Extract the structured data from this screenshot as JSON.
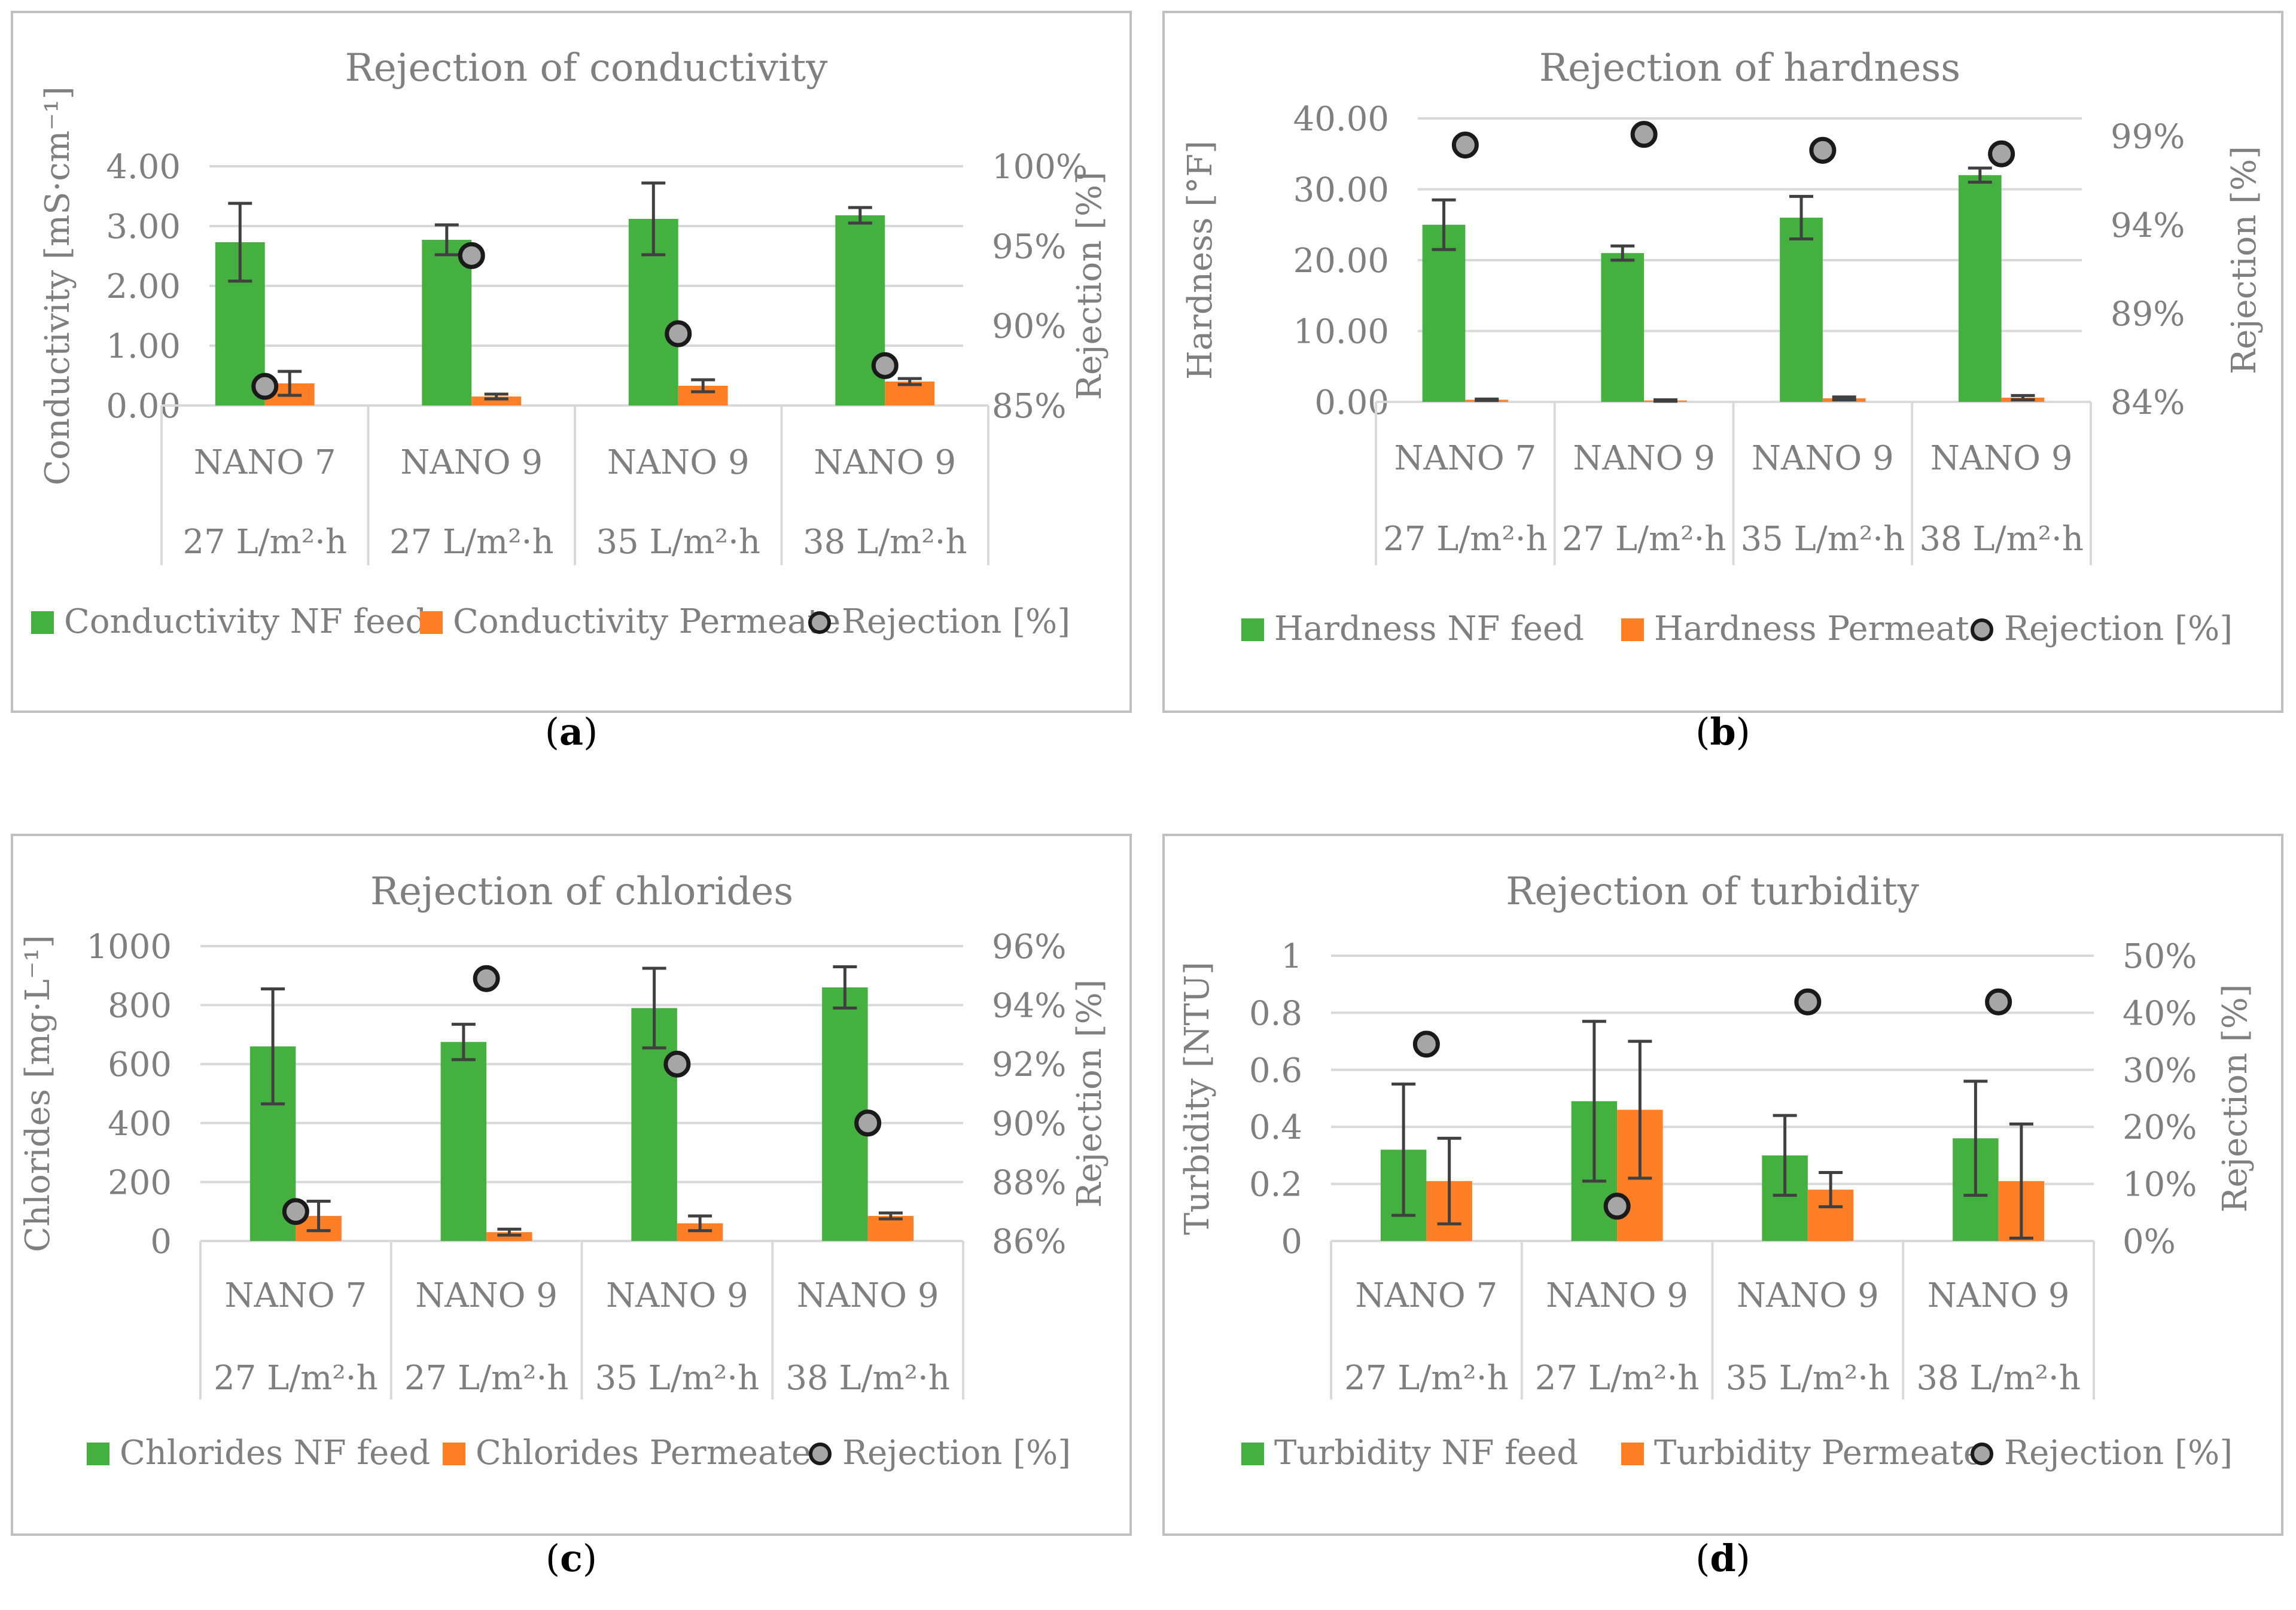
{
  "colors": {
    "feed": "#44b03f",
    "permeate": "#ff7f27",
    "rejection_fill": "#a6a6a6",
    "rejection_stroke": "#1a1a1a",
    "text": "#7f7f7f",
    "grid": "#d9d9d9",
    "frame": "#bfbfbf",
    "errorbar": "#404040",
    "panel_label": "#000000"
  },
  "chart_data": [
    {
      "type": "bar",
      "panel_label": "(a)",
      "panel_letter": "a",
      "title": "Rejection of conductivity",
      "ylabel": "Conductivity [mS·cm⁻¹]",
      "y2label": "Rejection [%]",
      "ylim": [
        0,
        4
      ],
      "yticks": [
        "0.00",
        "1.00",
        "2.00",
        "3.00",
        "4.00"
      ],
      "y2lim": [
        85,
        100
      ],
      "y2ticks": [
        "85%",
        "90%",
        "95%",
        "100%"
      ],
      "y2tick_values": [
        85,
        90,
        95,
        100
      ],
      "categories": [
        {
          "membrane": "NANO 7",
          "flux": "27 L/m²·h"
        },
        {
          "membrane": "NANO 9",
          "flux": "27 L/m²·h"
        },
        {
          "membrane": "NANO 9",
          "flux": "35 L/m²·h"
        },
        {
          "membrane": "NANO 9",
          "flux": "38 L/m²·h"
        }
      ],
      "series": [
        {
          "name": "Conductivity NF feed",
          "values": [
            2.73,
            2.77,
            3.12,
            3.18
          ],
          "errors": [
            0.65,
            0.25,
            0.6,
            0.13
          ]
        },
        {
          "name": "Conductivity Permeate",
          "values": [
            0.37,
            0.15,
            0.33,
            0.4
          ],
          "errors": [
            0.2,
            0.04,
            0.1,
            0.05
          ]
        }
      ],
      "rejection": {
        "name": "Rejection [%]",
        "values": [
          86.2,
          94.4,
          89.5,
          87.5
        ]
      },
      "legend": [
        "Conductivity NF feed",
        "Conductivity Permeate",
        "Rejection [%]"
      ]
    },
    {
      "type": "bar",
      "panel_label": "(b)",
      "panel_letter": "b",
      "title": "Rejection of hardness",
      "ylabel": "Hardness [°F]",
      "y2label": "Rejection [%]",
      "ylim": [
        0,
        40
      ],
      "yticks": [
        "0.00",
        "10.00",
        "20.00",
        "30.00",
        "40.00"
      ],
      "y2lim": [
        84,
        100
      ],
      "y2ticks": [
        "84%",
        "89%",
        "94%",
        "99%"
      ],
      "y2tick_values": [
        84,
        89,
        94,
        99
      ],
      "categories": [
        {
          "membrane": "NANO 7",
          "flux": "27 L/m²·h"
        },
        {
          "membrane": "NANO 9",
          "flux": "27 L/m²·h"
        },
        {
          "membrane": "NANO 9",
          "flux": "35 L/m²·h"
        },
        {
          "membrane": "NANO 9",
          "flux": "38 L/m²·h"
        }
      ],
      "series": [
        {
          "name": "Hardness NF feed",
          "values": [
            25.0,
            21.0,
            26.0,
            32.0
          ],
          "errors": [
            3.5,
            1.0,
            3.0,
            1.0
          ]
        },
        {
          "name": "Hardness Permeate",
          "values": [
            0.3,
            0.2,
            0.5,
            0.6
          ],
          "errors": [
            0.1,
            0.1,
            0.2,
            0.3
          ]
        }
      ],
      "rejection": {
        "name": "Rejection [%]",
        "values": [
          98.5,
          99.1,
          98.2,
          98.0
        ]
      },
      "legend": [
        "Hardness NF feed",
        "Hardness Permeate",
        "Rejection [%]"
      ]
    },
    {
      "type": "bar",
      "panel_label": "(c)",
      "panel_letter": "c",
      "title": "Rejection of chlorides",
      "ylabel": "Chlorides [mg·L⁻¹]",
      "y2label": "Rejection [%]",
      "ylim": [
        0,
        1000
      ],
      "yticks": [
        "0",
        "200",
        "400",
        "600",
        "800",
        "1000"
      ],
      "y2lim": [
        86,
        96
      ],
      "y2ticks": [
        "86%",
        "88%",
        "90%",
        "92%",
        "94%",
        "96%"
      ],
      "y2tick_values": [
        86,
        88,
        90,
        92,
        94,
        96
      ],
      "categories": [
        {
          "membrane": "NANO 7",
          "flux": "27 L/m²·h"
        },
        {
          "membrane": "NANO 9",
          "flux": "27 L/m²·h"
        },
        {
          "membrane": "NANO 9",
          "flux": "35 L/m²·h"
        },
        {
          "membrane": "NANO 9",
          "flux": "38 L/m²·h"
        }
      ],
      "series": [
        {
          "name": "Chlorides NF feed",
          "values": [
            660,
            675,
            790,
            860
          ],
          "errors": [
            195,
            60,
            135,
            70
          ]
        },
        {
          "name": "Chlorides Permeate",
          "values": [
            85,
            30,
            60,
            85
          ],
          "errors": [
            50,
            10,
            25,
            10
          ]
        }
      ],
      "rejection": {
        "name": "Rejection [%]",
        "values": [
          87.0,
          94.9,
          92.0,
          90.0
        ]
      },
      "legend": [
        "Chlorides NF feed",
        "Chlorides Permeate",
        "Rejection [%]"
      ]
    },
    {
      "type": "bar",
      "panel_label": "(d)",
      "panel_letter": "d",
      "title": "Rejection of turbidity",
      "ylabel": "Turbidity [NTU]",
      "y2label": "Rejection [%]",
      "ylim": [
        0,
        1
      ],
      "yticks": [
        "0",
        "0.2",
        "0.4",
        "0.6",
        "0.8",
        "1"
      ],
      "y2lim": [
        0,
        50
      ],
      "y2ticks": [
        "0%",
        "10%",
        "20%",
        "30%",
        "40%",
        "50%"
      ],
      "y2tick_values": [
        0,
        10,
        20,
        30,
        40,
        50
      ],
      "categories": [
        {
          "membrane": "NANO 7",
          "flux": "27 L/m²·h"
        },
        {
          "membrane": "NANO 9",
          "flux": "27 L/m²·h"
        },
        {
          "membrane": "NANO 9",
          "flux": "35 L/m²·h"
        },
        {
          "membrane": "NANO 9",
          "flux": "38 L/m²·h"
        }
      ],
      "series": [
        {
          "name": "Turbidity NF feed",
          "values": [
            0.32,
            0.49,
            0.3,
            0.36
          ],
          "errors": [
            0.23,
            0.28,
            0.14,
            0.2
          ]
        },
        {
          "name": "Turbidity Permeate",
          "values": [
            0.21,
            0.46,
            0.18,
            0.21
          ],
          "errors": [
            0.15,
            0.24,
            0.06,
            0.2
          ]
        }
      ],
      "rejection": {
        "name": "Rejection [%]",
        "values": [
          34.5,
          6.1,
          41.9,
          41.9
        ]
      },
      "legend": [
        "Turbidity NF feed",
        "Turbidity Permeate",
        "Rejection [%]"
      ]
    }
  ]
}
